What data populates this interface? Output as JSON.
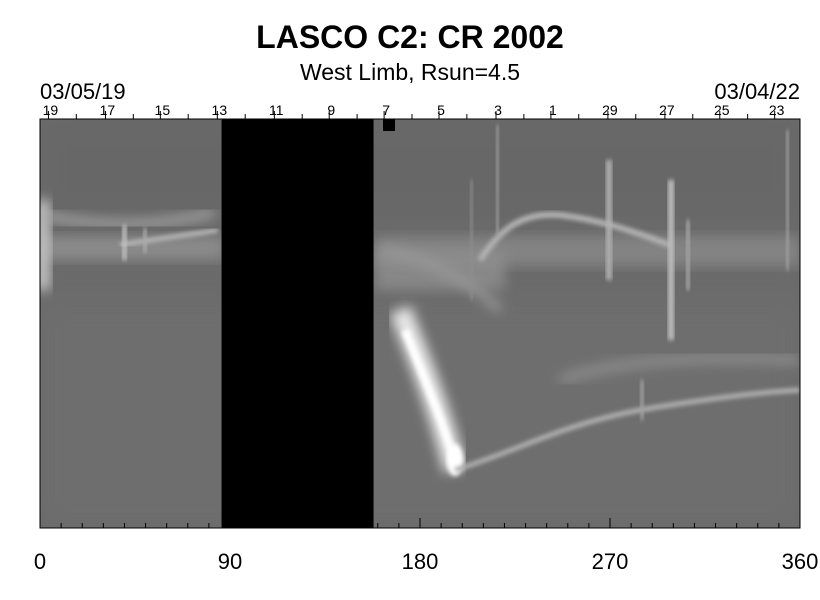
{
  "chart_data": {
    "type": "heatmap",
    "title": "LASCO C2: CR 2002",
    "subtitle": "West Limb, Rsun=4.5",
    "start_date": "03/05/19",
    "end_date": "03/04/22",
    "x_ticks": [
      0,
      90,
      180,
      270,
      360
    ],
    "xlim": [
      0,
      360
    ],
    "top_day_labels": [
      {
        "label": "19",
        "x": 4
      },
      {
        "label": "17",
        "x": 31
      },
      {
        "label": "15",
        "x": 57
      },
      {
        "label": "13",
        "x": 84
      },
      {
        "label": "11",
        "x": 111
      },
      {
        "label": "9",
        "x": 137
      },
      {
        "label": "7",
        "x": 163
      },
      {
        "label": "5",
        "x": 189
      },
      {
        "label": "3",
        "x": 216
      },
      {
        "label": "1",
        "x": 242
      },
      {
        "label": "29",
        "x": 269
      },
      {
        "label": "27",
        "x": 296
      },
      {
        "label": "25",
        "x": 322
      },
      {
        "label": "23",
        "x": 348
      }
    ],
    "data_gaps": [
      {
        "x_start": 86,
        "x_end": 158
      }
    ],
    "grayscale": true,
    "colors": {
      "background": "#6e6e6e",
      "gap": "#000000",
      "bright": "#ffffff"
    }
  }
}
